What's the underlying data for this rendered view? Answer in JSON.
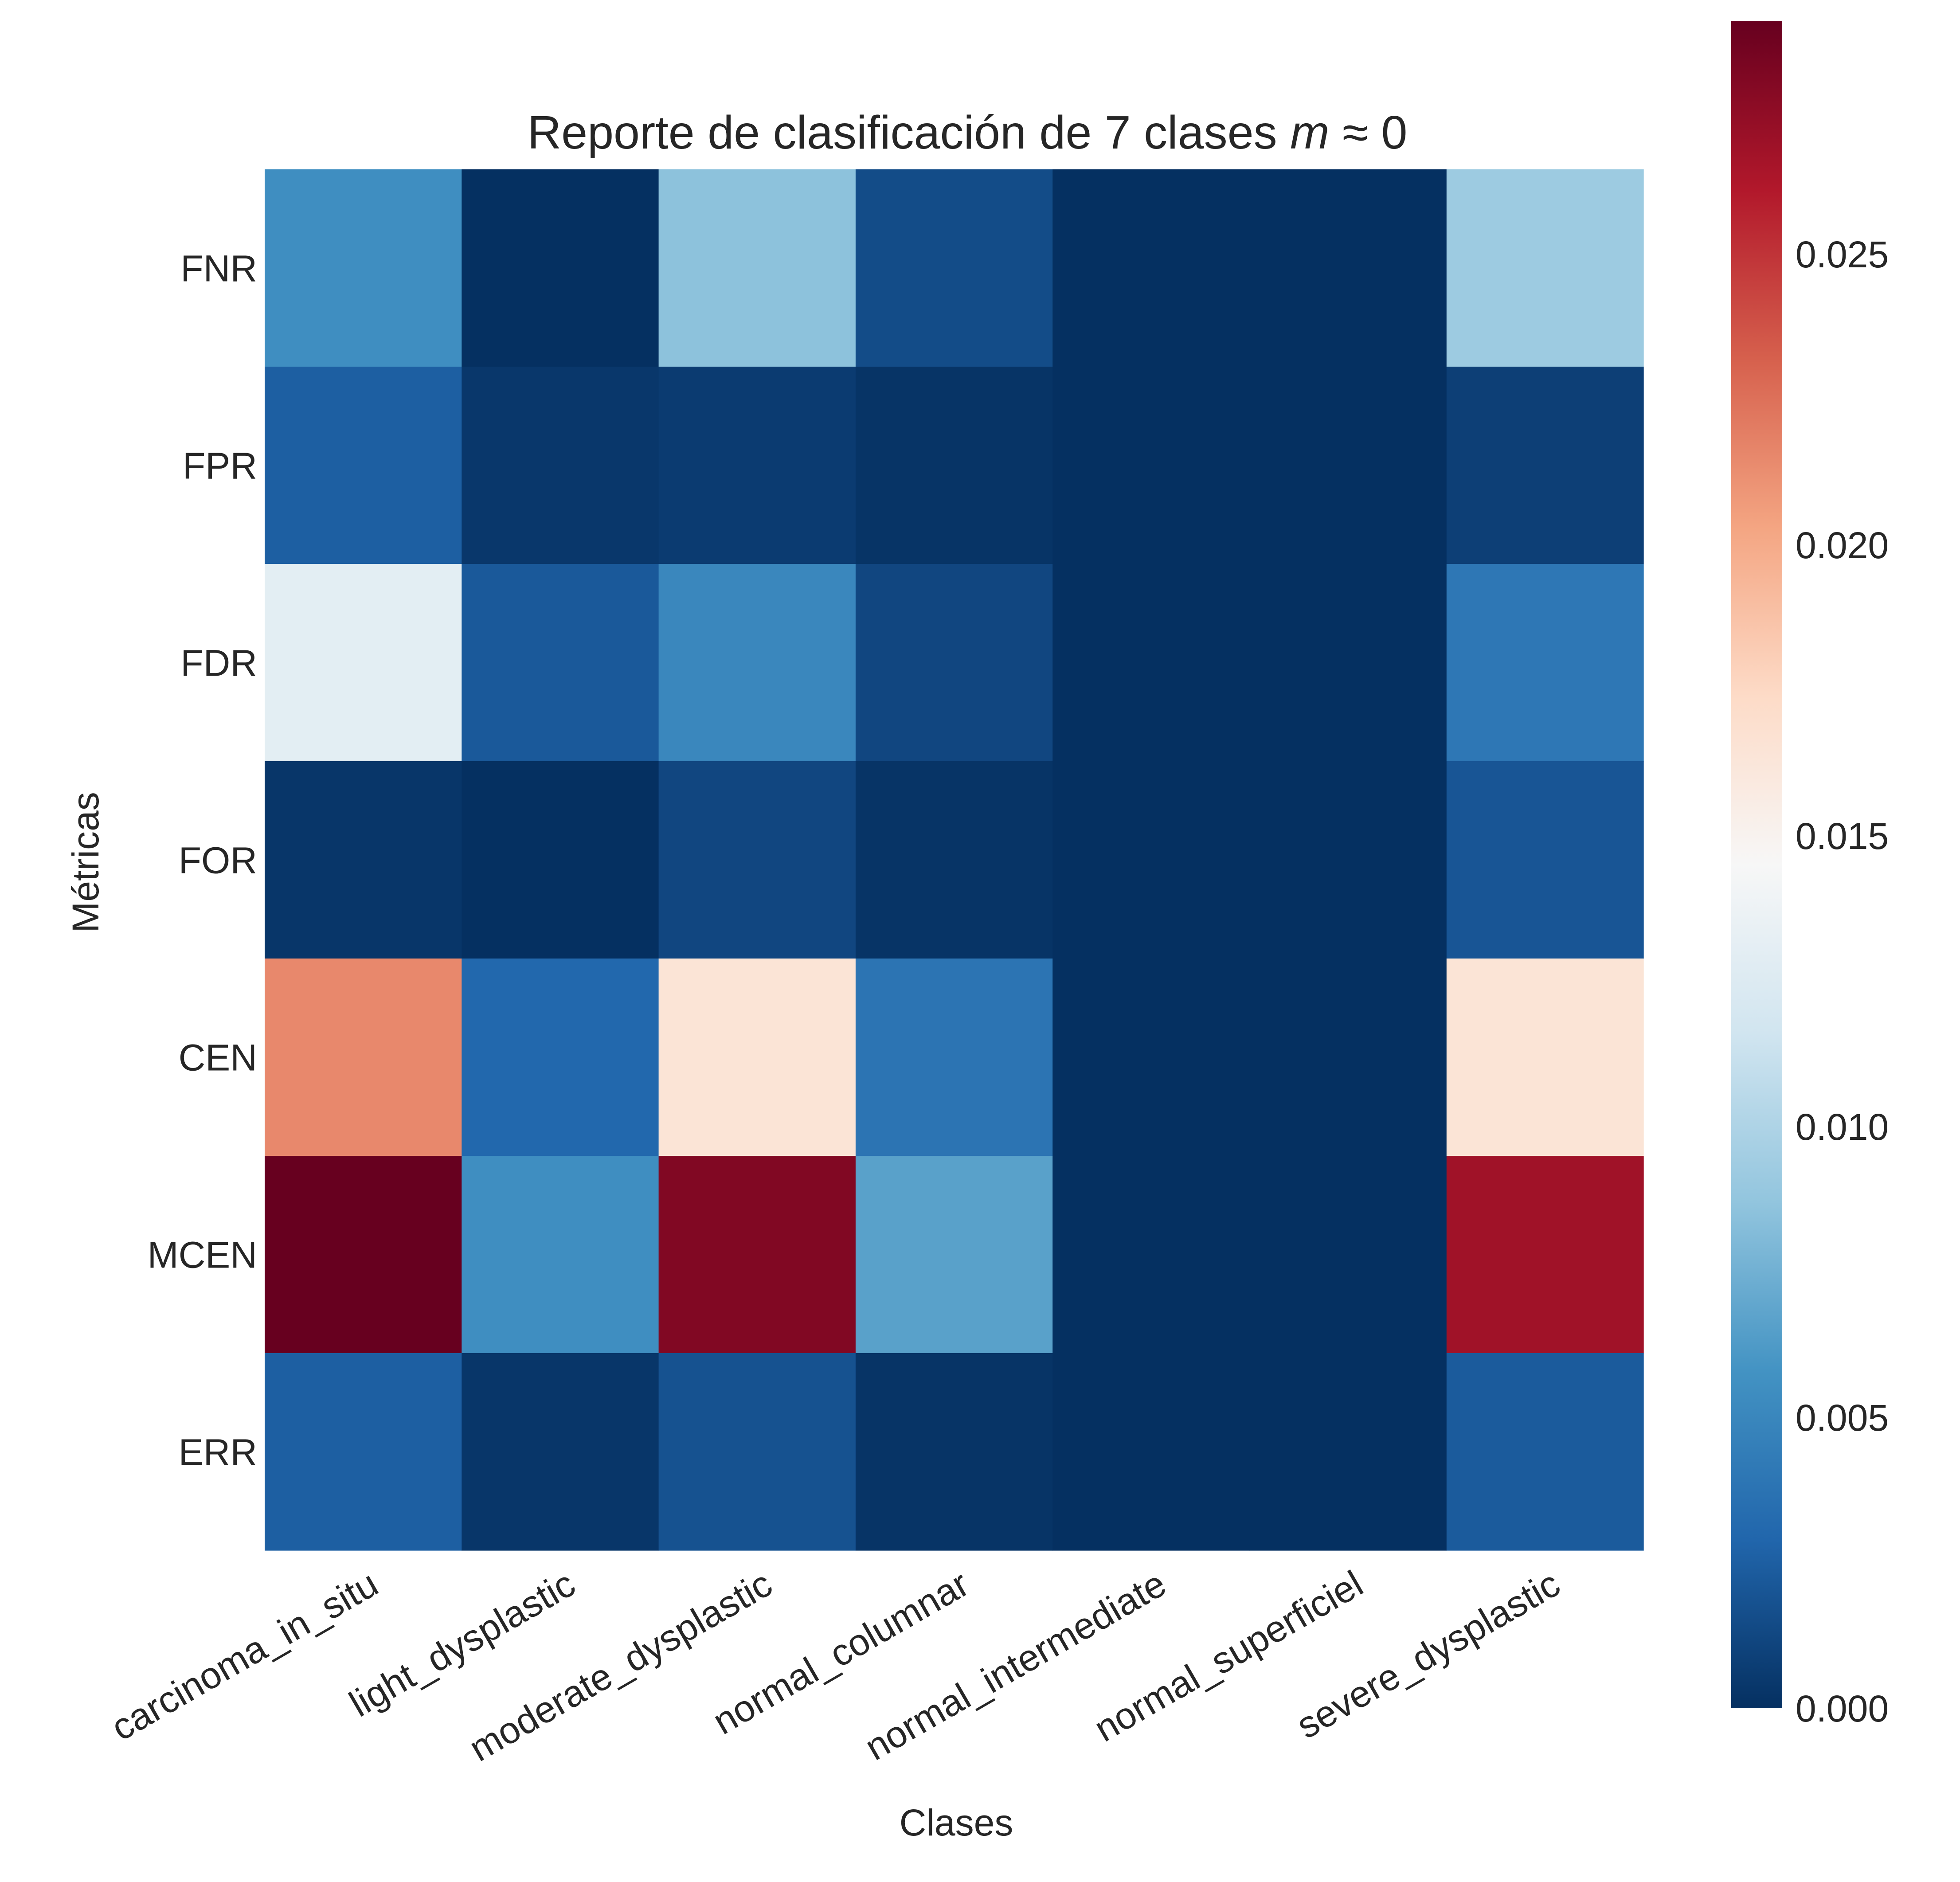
{
  "chart_data": {
    "type": "heatmap",
    "title": "Reporte de clasificación de 7 clases m ≈ 0",
    "title_main": "Reporte de clasificación de 7 clases ",
    "title_math": "m",
    "title_tail": " ≈ 0",
    "xlabel": "Clases",
    "ylabel": "Métricas",
    "x_categories": [
      "carcinoma_in_situ",
      "light_dysplastic",
      "moderate_dysplastic",
      "normal_columnar",
      "normal_intermediate",
      "normal_superficiel",
      "severe_dysplastic"
    ],
    "y_categories": [
      "FNR",
      "FPR",
      "FDR",
      "FOR",
      "CEN",
      "MCEN",
      "ERR"
    ],
    "values": [
      [
        0.0055,
        0.0,
        0.0085,
        0.0015,
        0.0,
        0.0,
        0.0092
      ],
      [
        0.0025,
        0.0004,
        0.0006,
        0.0002,
        0.0,
        0.0,
        0.0008
      ],
      [
        0.013,
        0.0022,
        0.005,
        0.0012,
        0.0,
        0.0,
        0.004
      ],
      [
        0.0003,
        0.0,
        0.0012,
        0.0002,
        0.0,
        0.0,
        0.002
      ],
      [
        0.0215,
        0.003,
        0.0165,
        0.0038,
        0.0,
        0.0,
        0.0165
      ],
      [
        0.029,
        0.0055,
        0.028,
        0.0066,
        0.0,
        0.0,
        0.0268
      ],
      [
        0.0025,
        0.0003,
        0.0018,
        0.0002,
        0.0,
        0.0,
        0.0023
      ]
    ],
    "vmin": 0.0,
    "vmax": 0.029,
    "colormap": "RdBu_r",
    "colorbar_ticks": [
      "0.000",
      "0.005",
      "0.010",
      "0.015",
      "0.020",
      "0.025"
    ],
    "grid": false
  }
}
